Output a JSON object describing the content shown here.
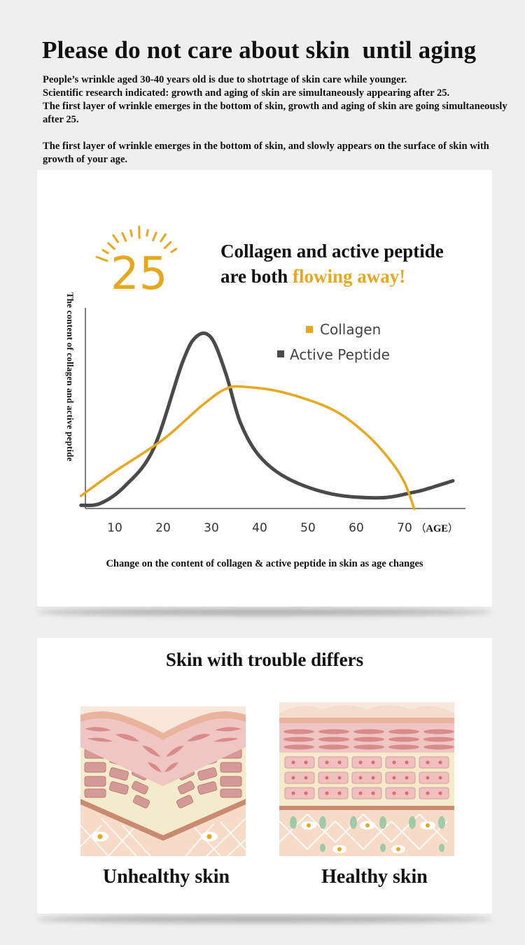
{
  "page": {
    "title": "Please do not care about skin  until aging",
    "intro_paragraphs": [
      "People’s wrinkle aged 30-40 years old is due to shotrtage of skin care while younger.",
      "Scientific research indicated: growth and aging of skin are simultaneously appearing after 25.",
      "The first layer of wrinkle emerges in the bottom of skin, growth and aging of skin are going simultaneously  after 25."
    ],
    "intro_paragraph_2": "The first layer of wrinkle emerges in the bottom of skin, and slowly appears on the surface of skin with growth of  your age."
  },
  "headline": {
    "age_badge": "25",
    "line1": "Collagen and  active peptide",
    "line2_prefix": "are both ",
    "line2_highlight": "flowing away",
    "line2_suffix": "!"
  },
  "colors": {
    "collagen": "#e8a81e",
    "peptide": "#4a4a4a",
    "axis": "#555555",
    "accent": "#e8a81e"
  },
  "chart_data": {
    "type": "line",
    "title": "Change on the content of collagen & active peptide in skin as age changes",
    "xlabel": "AGE",
    "xlabel_open": "（",
    "xlabel_close": "）",
    "ylabel": "The content of collagen and active peptide",
    "x_ticks": [
      "10",
      "20",
      "30",
      "40",
      "50",
      "60",
      "70"
    ],
    "xlim": [
      3,
      80
    ],
    "ylim": [
      0,
      100
    ],
    "legend_position": "top-right",
    "series": [
      {
        "name": "Collagen",
        "color": "#e8a81e",
        "x": [
          3,
          10,
          20,
          28,
          33,
          37,
          45,
          55,
          62,
          67,
          70,
          72
        ],
        "y": [
          3,
          16,
          33,
          51,
          60,
          61,
          58,
          49,
          36,
          22,
          10,
          -4
        ]
      },
      {
        "name": "Active Peptide",
        "color": "#4a4a4a",
        "x": [
          3,
          7,
          12,
          18,
          24,
          27,
          30,
          33,
          36,
          40,
          46,
          55,
          65,
          72,
          75,
          80
        ],
        "y": [
          -2,
          -1,
          8,
          28,
          74,
          88,
          87,
          68,
          42,
          24,
          12,
          4,
          2,
          5,
          7,
          11
        ]
      }
    ]
  },
  "trouble": {
    "title": "Skin with trouble differs",
    "unhealthy_label": "Unhealthy skin",
    "healthy_label": "Healthy skin"
  }
}
